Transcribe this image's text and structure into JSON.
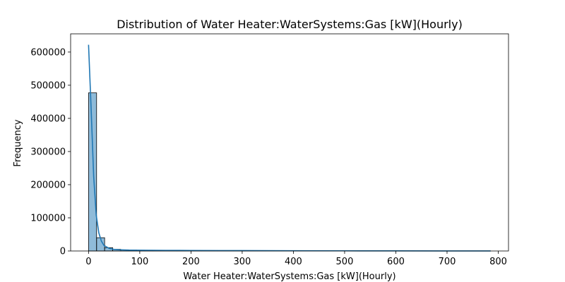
{
  "chart_data": {
    "type": "bar",
    "title": "Distribution of Water Heater:WaterSystems:Gas [kW](Hourly)",
    "xlabel": "Water Heater:WaterSystems:Gas [kW](Hourly)",
    "ylabel": "Frequency",
    "xlim": [
      -35,
      820
    ],
    "ylim": [
      0,
      655000
    ],
    "xticks": [
      0,
      100,
      200,
      300,
      400,
      500,
      600,
      700,
      800
    ],
    "yticks": [
      0,
      100000,
      200000,
      300000,
      400000,
      500000,
      600000
    ],
    "bin_edges": [
      0,
      15.7,
      31.4,
      47.1,
      62.8,
      78.5,
      94.2,
      109.9,
      125.6,
      141.3,
      157,
      172.7,
      188.4,
      204.1,
      219.8,
      235.5,
      251.2,
      266.9,
      282.6,
      298.3,
      314,
      329.7,
      345.4,
      361.1,
      376.8,
      392.5,
      408.2,
      423.9,
      439.6,
      455.3,
      471,
      486.7,
      502.4,
      518.1,
      533.8,
      549.5,
      565.2,
      580.9,
      596.6,
      612.3,
      628,
      643.7,
      659.4,
      675.1,
      690.8,
      706.5,
      722.2,
      737.9,
      753.6,
      769.3,
      785
    ],
    "counts": [
      477000,
      40000,
      10000,
      5000,
      3500,
      2800,
      2400,
      2200,
      2000,
      1900,
      1800,
      1700,
      1600,
      1500,
      1400,
      1350,
      1300,
      1250,
      1200,
      1150,
      1100,
      1000,
      950,
      900,
      850,
      800,
      750,
      700,
      650,
      600,
      560,
      520,
      480,
      440,
      400,
      370,
      340,
      310,
      280,
      250,
      220,
      200,
      180,
      160,
      140,
      120,
      100,
      80,
      60,
      40
    ],
    "kde": {
      "x": [
        0,
        5,
        10,
        15,
        20,
        25,
        30,
        40,
        50,
        60,
        80,
        100,
        150,
        200,
        250,
        300,
        400,
        500,
        600,
        700,
        785
      ],
      "y": [
        622000,
        430000,
        225000,
        108000,
        55000,
        30000,
        17000,
        8000,
        4800,
        3500,
        2600,
        2200,
        1800,
        1500,
        1300,
        1100,
        800,
        550,
        350,
        200,
        100
      ]
    },
    "colors": {
      "bar_fill": "#1f77b4",
      "bar_fill_opacity": 0.5,
      "bar_edge": "#000000",
      "kde_line": "#1f77b4"
    },
    "grid": false,
    "legend": "none"
  }
}
